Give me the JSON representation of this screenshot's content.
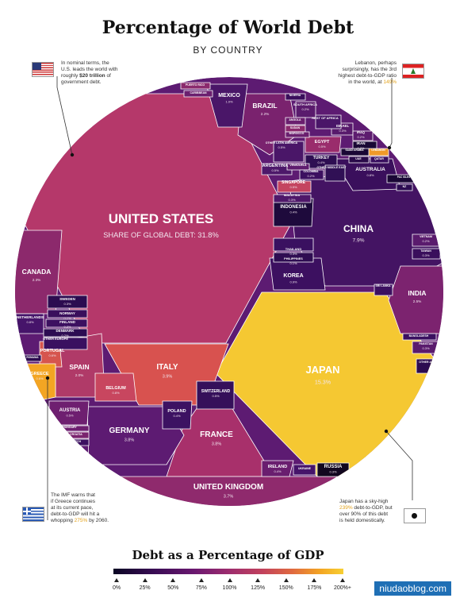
{
  "header": {
    "title": "Percentage of World Debt",
    "subtitle": "BY COUNTRY"
  },
  "notes": {
    "us": {
      "line1": "In nominal terms, the",
      "line2": "U.S. leads the world with",
      "line3a": "roughly ",
      "line3b": "$20 trillion",
      "line3c": " of",
      "line4": "government debt."
    },
    "lebanon": {
      "line1": "Lebanon, perhaps",
      "line2": "surprisingly, has the 3rd",
      "line3": "highest debt-to-GDP ratio",
      "line4a": "in the world, at ",
      "line4b": "149%"
    },
    "greece": {
      "line1": "The IMF warns that",
      "line2": "if Greece continues",
      "line3": "at its current pace,",
      "line4": "debt-to-GDP will hit a",
      "line5a": "whopping ",
      "line5b": "275%",
      "line5c": " by 2060."
    },
    "japan": {
      "line1": "Japan has a sky-high",
      "line2a": "239%",
      "line2b": " debt-to-GDP, but",
      "line3": "over 90% of this debt",
      "line4": "is held domestically."
    }
  },
  "legend": {
    "title": "Debt as a Percentage of GDP",
    "ticks": [
      "0%",
      "25%",
      "50%",
      "75%",
      "100%",
      "125%",
      "150%",
      "175%",
      "200%+"
    ]
  },
  "watermark": "niudaoblog.com",
  "colors": {
    "low": "#0b0524",
    "mid": "#9c2c6e",
    "high": "#f7cf33"
  },
  "chart_data": {
    "type": "voronoi-treemap",
    "title": "Percentage of World Debt",
    "subtitle": "BY COUNTRY",
    "value_caption": "SHARE OF GLOBAL DEBT",
    "color_scale_caption": "Debt as a Percentage of GDP",
    "regions": [
      {
        "name": "UNITED STATES",
        "share": "31.8%",
        "color": "#b5386a"
      },
      {
        "name": "JAPAN",
        "share": "15.3%",
        "color": "#f5c832"
      },
      {
        "name": "CHINA",
        "share": "7.9%",
        "color": "#441463"
      },
      {
        "name": "ITALY",
        "share": "3.9%",
        "color": "#d8524f"
      },
      {
        "name": "FRANCE",
        "share": "3.8%",
        "color": "#a8306b"
      },
      {
        "name": "GERMANY",
        "share": "3.8%",
        "color": "#5d1b72"
      },
      {
        "name": "UNITED KINGDOM",
        "share": "3.7%",
        "color": "#8f2a6d"
      },
      {
        "name": "INDIA",
        "share": "2.5%",
        "color": "#7c236f"
      },
      {
        "name": "CANADA",
        "share": "2.3%",
        "color": "#8c296c"
      },
      {
        "name": "BRAZIL",
        "share": "2.2%",
        "color": "#7a226e"
      },
      {
        "name": "SPAIN",
        "share": "2.0%",
        "color": "#b03a68"
      },
      {
        "name": "MEXICO",
        "share": "1.0%",
        "color": "#4a1668"
      },
      {
        "name": "KOREA",
        "share": "0.9%",
        "color": "#3c1060"
      },
      {
        "name": "PORTUGAL",
        "share": "0.6%",
        "color": "#d6554e"
      },
      {
        "name": "GREECE",
        "share": "0.6%",
        "color": "#f3a523"
      },
      {
        "name": "BELGIUM",
        "share": "0.8%",
        "color": "#c8465f"
      },
      {
        "name": "AUSTRALIA",
        "share": "0.8%",
        "color": "#3a0f5c"
      },
      {
        "name": "NETHERLANDS",
        "share": "0.8%",
        "color": "#46146a"
      },
      {
        "name": "AUSTRIA",
        "share": "0.5%",
        "color": "#6e1f70"
      },
      {
        "name": "SWITZERLAND",
        "share": "0.5%",
        "color": "#35105a"
      },
      {
        "name": "POLAND",
        "share": "0.4%",
        "color": "#3d1262"
      },
      {
        "name": "INDONESIA",
        "share": "0.4%",
        "color": "#1e0a3c"
      },
      {
        "name": "IRELAND",
        "share": "0.4%",
        "color": "#6a1e6f"
      },
      {
        "name": "RUSSIA",
        "share": "0.3%",
        "color": "#12071f"
      },
      {
        "name": "EGYPT",
        "share": "0.5%",
        "color": "#9a2c6c"
      },
      {
        "name": "ARGENTINA",
        "share": "0.5%",
        "color": "#4d186a"
      },
      {
        "name": "TURKEY",
        "share": "0.4%",
        "color": "#2e0e52"
      },
      {
        "name": "SINGAPORE",
        "share": "0.5%",
        "color": "#c44460"
      },
      {
        "name": "MALAYSIA",
        "share": "0.3%",
        "color": "#4f186a"
      },
      {
        "name": "THAILAND",
        "share": "0.3%",
        "color": "#3a1060"
      },
      {
        "name": "PHILIPPINES",
        "share": "0.1%",
        "color": "#2f0d52"
      },
      {
        "name": "SWEDEN",
        "share": "0.3%",
        "color": "#2c0c50"
      },
      {
        "name": "NORWAY",
        "share": "0.2%",
        "color": "#3a0f5c"
      },
      {
        "name": "FINLAND",
        "share": "0.2%",
        "color": "#3c1060"
      },
      {
        "name": "DENMARK",
        "share": "0.2%",
        "color": "#2d0c52"
      },
      {
        "name": "OTHER EUROPE",
        "share": "",
        "color": "#3a1060"
      },
      {
        "name": "ISRAEL",
        "share": "0.3%",
        "color": "#581a6c"
      },
      {
        "name": "IRAN",
        "share": "0.2%",
        "color": "#1a0835"
      },
      {
        "name": "IRAQ",
        "share": "0.2%",
        "color": "#5d1c6f"
      },
      {
        "name": "LEBANON",
        "share": "",
        "color": "#f09a29"
      },
      {
        "name": "SAUDI ARABIA",
        "share": "",
        "color": "#1a0835"
      },
      {
        "name": "UAE",
        "share": "",
        "color": "#2a0b4a"
      },
      {
        "name": "QATAR",
        "share": "",
        "color": "#3a1060"
      },
      {
        "name": "SOUTH AFRICA",
        "share": "0.2%",
        "color": "#5a1b6d"
      },
      {
        "name": "REST OF AFRICA",
        "share": "",
        "color": "#4a1668"
      },
      {
        "name": "NIGERIA",
        "share": "",
        "color": "#3a0f5c"
      },
      {
        "name": "ANGOLA",
        "share": "",
        "color": "#6b1f6f"
      },
      {
        "name": "SUDAN",
        "share": "",
        "color": "#8b2a6d"
      },
      {
        "name": "MOROCCO",
        "share": "",
        "color": "#6a1f6f"
      },
      {
        "name": "OTHER LATIN AMERICA",
        "share": "0.5%",
        "color": "#4a1668"
      },
      {
        "name": "VENEZUELA",
        "share": "",
        "color": "#5f1c6f"
      },
      {
        "name": "COLOMBIA",
        "share": "0.2%",
        "color": "#3c1060"
      },
      {
        "name": "OTHER MIDDLE EAST",
        "share": "",
        "color": "#301055"
      },
      {
        "name": "NZ",
        "share": "",
        "color": "#2d0c52"
      },
      {
        "name": "PAC ISLES",
        "share": "",
        "color": "#1a0835"
      },
      {
        "name": "PUERTO RICO",
        "share": "",
        "color": "#8b2a6d"
      },
      {
        "name": "CARIBBEAN",
        "share": "",
        "color": "#6b1f6f"
      },
      {
        "name": "VIETNAM",
        "share": "0.2%",
        "color": "#5a1b6d"
      },
      {
        "name": "TAIWAN",
        "share": "0.3%",
        "color": "#3a0f5c"
      },
      {
        "name": "SRI LANKA",
        "share": "",
        "color": "#3c1060"
      },
      {
        "name": "BANGLADESH",
        "share": "",
        "color": "#3a1060"
      },
      {
        "name": "PAKISTAN",
        "share": "0.3%",
        "color": "#5a1b6d"
      },
      {
        "name": "OTHER ASIA",
        "share": "",
        "color": "#2c0c50"
      },
      {
        "name": "HUNGARY",
        "share": "",
        "color": "#6e1f70"
      },
      {
        "name": "CROATIA",
        "share": "",
        "color": "#7a236e"
      },
      {
        "name": "CZECH",
        "share": "",
        "color": "#3c1060"
      },
      {
        "name": "ROMANIA",
        "share": "",
        "color": "#2c0c50"
      },
      {
        "name": "UKRAINE",
        "share": "",
        "color": "#46146a"
      }
    ],
    "legend_ticks": [
      "0%",
      "25%",
      "50%",
      "75%",
      "100%",
      "125%",
      "150%",
      "175%",
      "200%+"
    ]
  }
}
